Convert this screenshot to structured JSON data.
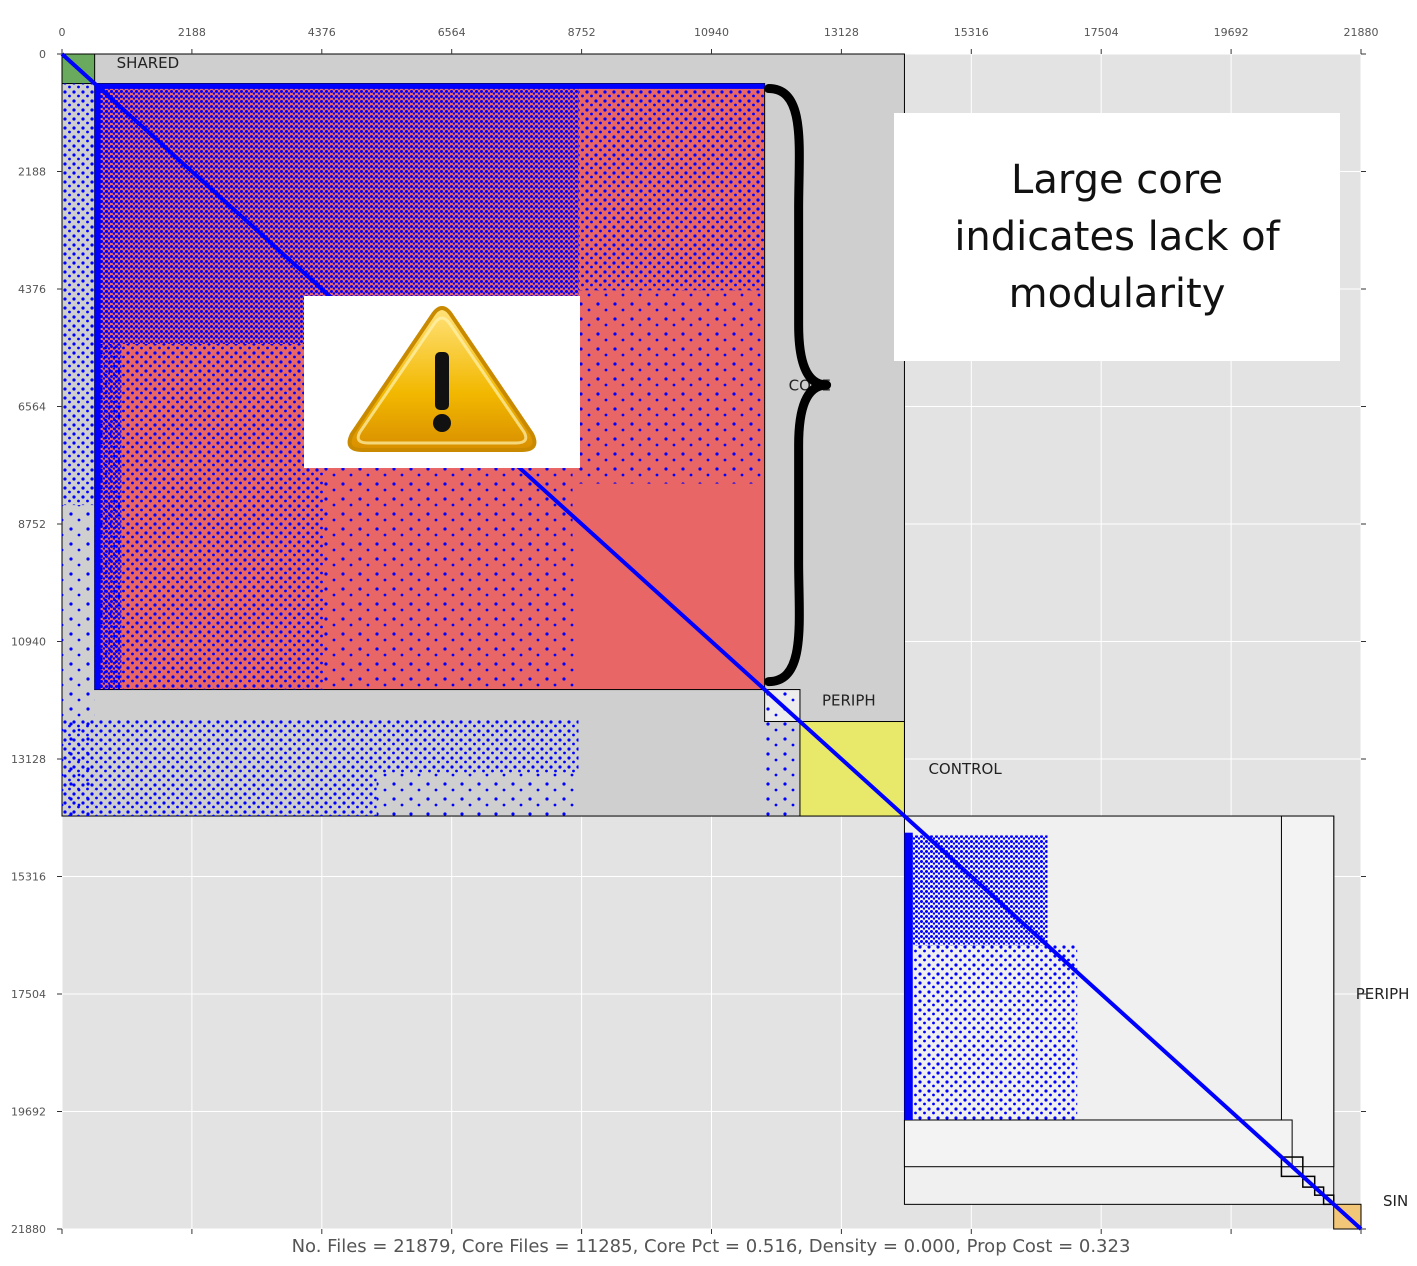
{
  "chart_data": {
    "type": "heatmap",
    "title": "",
    "xlabel": "",
    "ylabel": "",
    "xlim": [
      0,
      21880
    ],
    "ylim": [
      0,
      21880
    ],
    "ticks": [
      0,
      2188,
      4376,
      6564,
      8752,
      10940,
      13128,
      15316,
      17504,
      19692,
      21880
    ],
    "tick_labels": [
      "0",
      "2188",
      "4376",
      "6564",
      "8752",
      "10940",
      "13128",
      "15316",
      "17504",
      "19692",
      "21880"
    ],
    "grid": true,
    "regions": [
      {
        "name": "SHARED",
        "start": 0,
        "end": 550,
        "color": "#6aaa5e"
      },
      {
        "name": "CORE",
        "start": 550,
        "end": 11835,
        "color": "#e86666"
      },
      {
        "name": "PERIPH",
        "start": 11835,
        "end": 12430,
        "color": "#ededed"
      },
      {
        "name": "CONTROL",
        "start": 12430,
        "end": 14190,
        "color": "#e8e86a"
      },
      {
        "name": "PERIPH",
        "start": 14190,
        "end": 21421,
        "color": "#f0f0f0"
      },
      {
        "name": "SIN",
        "start": 20720,
        "end": 21880,
        "color": "#f2c678"
      }
    ],
    "dependency_color": "#0000ff",
    "footer": "No. Files = 21879, Core Files = 11285, Core Pct = 0.516, Density = 0.000, Prop Cost = 0.323"
  },
  "callout": {
    "text": "Large core\nindicates lack of\nmodularity"
  },
  "icons": {
    "warning": "warning-triangle-icon",
    "brace": "right-curly-brace-icon"
  }
}
